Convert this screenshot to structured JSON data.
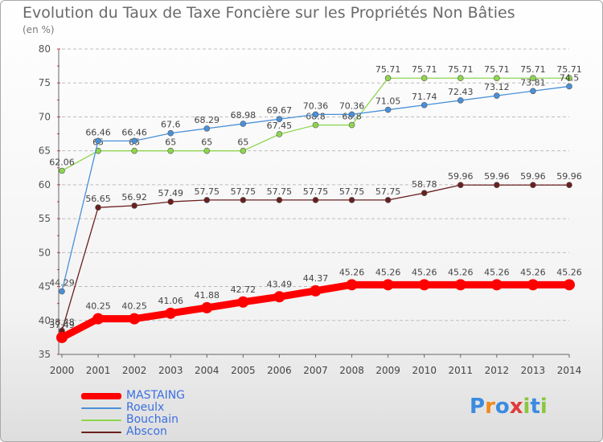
{
  "title": "Evolution du Taux de Taxe Foncière sur les Propriétés Non Bâties",
  "unit": "(en %)",
  "logo": {
    "letters": [
      "P",
      "r",
      "o",
      "x",
      "i",
      "t",
      "i"
    ],
    "colors": [
      "#3b8be0",
      "#f08a1c",
      "#3b8be0",
      "#e03b3b",
      "#8cc63f",
      "#3b8be0",
      "#8cc63f"
    ]
  },
  "chart_data": {
    "type": "line",
    "x": [
      "2000",
      "2001",
      "2002",
      "2003",
      "2004",
      "2005",
      "2006",
      "2007",
      "2008",
      "2009",
      "2010",
      "2011",
      "2012",
      "2013",
      "2014"
    ],
    "ylim": [
      35,
      80
    ],
    "yticks": [
      "35",
      "40",
      "45",
      "50",
      "55",
      "60",
      "65",
      "70",
      "75",
      "80"
    ],
    "grid": "horizontal dashed",
    "legend_position": "bottom-left",
    "series": [
      {
        "name": "MASTAING",
        "color": "#ff0000",
        "bold": true,
        "values": [
          37.49,
          40.25,
          40.25,
          41.06,
          41.88,
          42.72,
          43.49,
          44.37,
          45.26,
          45.26,
          45.26,
          45.26,
          45.26,
          45.26,
          45.26
        ],
        "labels": [
          "37.49",
          "40.25",
          "40.25",
          "41.06",
          "41.88",
          "42.72",
          "43.49",
          "44.37",
          "45.26",
          "45.26",
          "45.26",
          "45.26",
          "45.26",
          "45.26",
          "45.26"
        ]
      },
      {
        "name": "Roeulx",
        "color": "#4a90d9",
        "values": [
          44.29,
          66.46,
          66.46,
          67.6,
          68.29,
          68.98,
          69.67,
          70.36,
          70.36,
          71.05,
          71.74,
          72.43,
          73.12,
          73.81,
          74.5
        ],
        "labels": [
          "44.29",
          "66.46",
          "66.46",
          "67.6",
          "68.29",
          "68.98",
          "69.67",
          "70.36",
          "70.36",
          "71.05",
          "71.74",
          "72.43",
          "73.12",
          "73.81",
          "74.5"
        ]
      },
      {
        "name": "Bouchain",
        "color": "#8ed64f",
        "values": [
          62.06,
          65,
          65,
          65,
          65,
          65,
          67.45,
          68.8,
          68.8,
          75.71,
          75.71,
          75.71,
          75.71,
          75.71,
          75.71
        ],
        "labels": [
          "62.06",
          "65",
          "65",
          "65",
          "65",
          "65",
          "67.45",
          "68.8",
          "68.8",
          "75.71",
          "75.71",
          "75.71",
          "75.71",
          "75.71",
          "75.71"
        ]
      },
      {
        "name": "Abscon",
        "color": "#6b1f1f",
        "values": [
          38.48,
          56.65,
          56.92,
          57.49,
          57.75,
          57.75,
          57.75,
          57.75,
          57.75,
          57.75,
          58.78,
          59.96,
          59.96,
          59.96,
          59.96
        ],
        "labels": [
          "38.48",
          "56.65",
          "56.92",
          "57.49",
          "57.75",
          "57.75",
          "57.75",
          "57.75",
          "57.75",
          "57.75",
          "58.78",
          "59.96",
          "59.96",
          "59.96",
          "59.96"
        ]
      }
    ]
  }
}
